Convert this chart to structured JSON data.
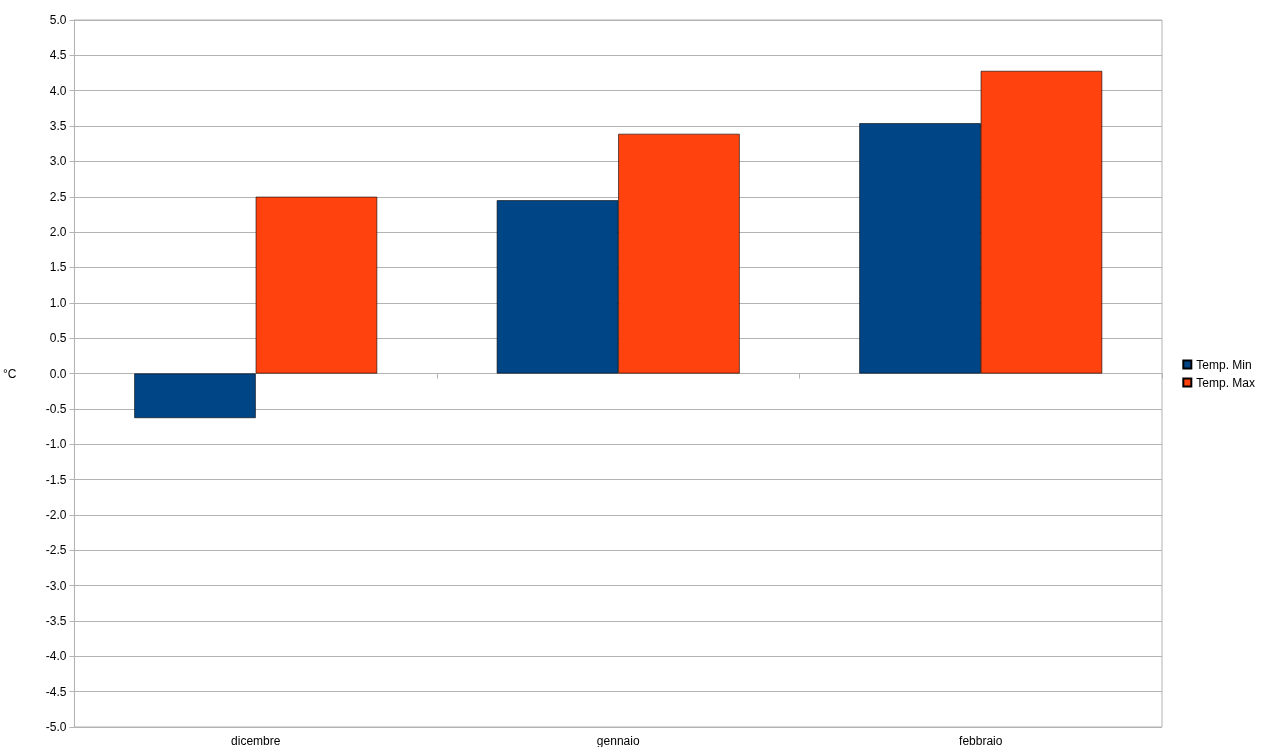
{
  "chart_data": {
    "type": "bar",
    "ylabel": "°C",
    "categories": [
      "dicembre",
      "gennaio",
      "febbraio"
    ],
    "series": [
      {
        "name": "Temp. Min",
        "color": "#004586",
        "values": [
          -0.63,
          2.45,
          3.54
        ]
      },
      {
        "name": "Temp. Max",
        "color": "#ff420e",
        "values": [
          2.5,
          3.39,
          4.28
        ]
      }
    ],
    "ylim": [
      -5,
      5
    ],
    "yticks": [
      {
        "value": -5,
        "label": "-5.0"
      },
      -4.5,
      {
        "value": -4,
        "label": "-4.0"
      },
      -3.5,
      {
        "value": -3,
        "label": "-3.0"
      },
      -2.5,
      {
        "value": -2,
        "label": "-2.0"
      },
      -1.5,
      {
        "value": -1,
        "label": "-1.0"
      },
      -0.5,
      {
        "value": 0,
        "label": "0.0"
      },
      0.5,
      {
        "value": 1,
        "label": "1.0"
      },
      1.5,
      {
        "value": 2,
        "label": "2.0"
      },
      2.5,
      {
        "value": 3,
        "label": "3.0"
      },
      3.5,
      {
        "value": 4,
        "label": "4.0"
      },
      4.5,
      {
        "value": 5,
        "label": "5.0"
      }
    ],
    "grid": "y",
    "legend": "right"
  }
}
